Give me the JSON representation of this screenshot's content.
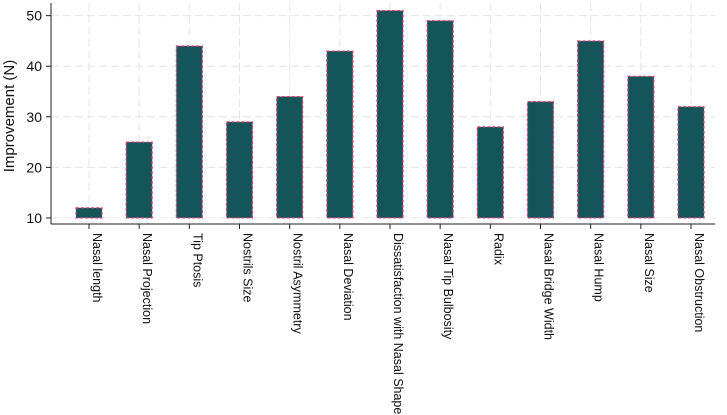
{
  "chart_data": {
    "type": "bar",
    "title": "",
    "xlabel": "",
    "ylabel": "Improvement (N)",
    "ylim": [
      8.8,
      52.5
    ],
    "yticks": [
      10,
      20,
      30,
      40,
      50
    ],
    "grid": true,
    "legend": "none",
    "categories": [
      "Nasal length",
      "Nasal Projection",
      "Tip Ptosis",
      "Nostrils Size",
      "Nostril Asymmetry",
      "Nasal Deviation",
      "Dissatisfaction with Nasal Shape",
      "Nasal Tip Bulbosity",
      "Radix",
      "Nasal Bridge Width",
      "Nasal Hump",
      "Nasal Size",
      "Nasal Obstruction"
    ],
    "series": [
      {
        "values": [
          12,
          25,
          44,
          29,
          34,
          43,
          51,
          49,
          28,
          33,
          45,
          38,
          32
        ]
      }
    ],
    "base": 10,
    "bar_color": "#14555a",
    "bar_edge_color": "#e0407a",
    "grid_color": "#e6e6e6"
  }
}
